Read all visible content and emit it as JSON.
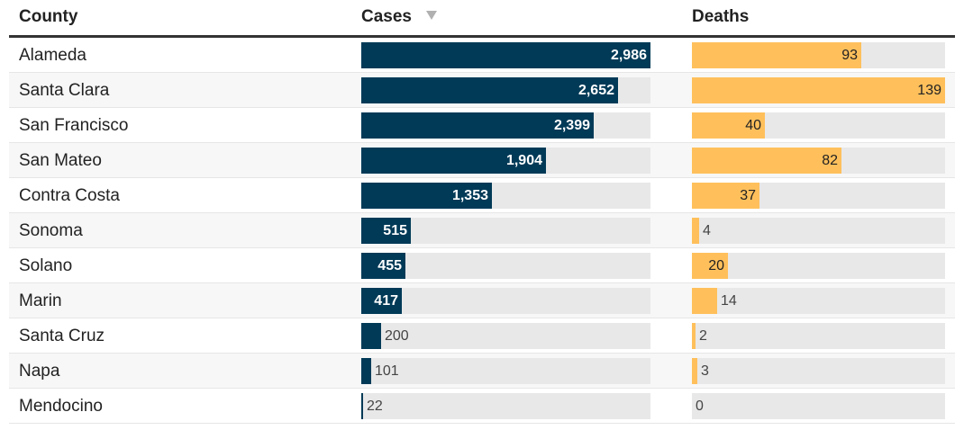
{
  "columns": {
    "county": "County",
    "cases": "Cases",
    "deaths": "Deaths"
  },
  "sort": {
    "column": "cases",
    "direction": "descending",
    "icon": "sort-descending-icon"
  },
  "colors": {
    "cases_bar": "#003a57",
    "deaths_bar": "#ffc05c",
    "track": "#e8e8e8"
  },
  "chart_data": {
    "type": "table",
    "categories": [
      "Alameda",
      "Santa Clara",
      "San Francisco",
      "San Mateo",
      "Contra Costa",
      "Sonoma",
      "Solano",
      "Marin",
      "Santa Cruz",
      "Napa",
      "Mendocino"
    ],
    "series": [
      {
        "name": "Cases",
        "values": [
          2986,
          2652,
          2399,
          1904,
          1353,
          515,
          455,
          417,
          200,
          101,
          22
        ],
        "labels": [
          "2,986",
          "2,652",
          "2,399",
          "1,904",
          "1,353",
          "515",
          "455",
          "417",
          "200",
          "101",
          "22"
        ],
        "max": 2986
      },
      {
        "name": "Deaths",
        "values": [
          93,
          139,
          40,
          82,
          37,
          4,
          20,
          14,
          2,
          3,
          0
        ],
        "labels": [
          "93",
          "139",
          "40",
          "82",
          "37",
          "4",
          "20",
          "14",
          "2",
          "3",
          "0"
        ],
        "max": 139
      }
    ]
  }
}
